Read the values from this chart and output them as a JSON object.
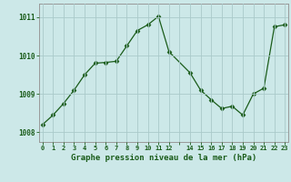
{
  "x": [
    0,
    1,
    2,
    3,
    4,
    5,
    6,
    7,
    8,
    9,
    10,
    11,
    12,
    14,
    15,
    16,
    17,
    18,
    19,
    20,
    21,
    22,
    23
  ],
  "y": [
    1008.2,
    1008.45,
    1008.75,
    1009.1,
    1009.5,
    1009.8,
    1009.82,
    1009.85,
    1010.25,
    1010.65,
    1010.8,
    1011.02,
    1010.1,
    1009.55,
    1009.1,
    1008.85,
    1008.62,
    1008.68,
    1008.45,
    1009.0,
    1009.15,
    1010.75,
    1010.8
  ],
  "line_color": "#1a5c1a",
  "marker": "D",
  "marker_size": 2.5,
  "bg_color": "#cce8e8",
  "grid_color": "#aacaca",
  "xlabel": "Graphe pression niveau de la mer (hPa)",
  "xlabel_color": "#1a5c1a",
  "tick_color": "#1a5c1a",
  "axis_color": "#999999",
  "ylim": [
    1007.75,
    1011.35
  ],
  "yticks": [
    1008,
    1009,
    1010,
    1011
  ],
  "xtick_labels": [
    "0",
    "1",
    "2",
    "3",
    "4",
    "5",
    "6",
    "7",
    "8",
    "9",
    "10",
    "11",
    "12",
    "",
    "14",
    "15",
    "16",
    "17",
    "18",
    "19",
    "20",
    "21",
    "22",
    "23"
  ],
  "xlim": [
    -0.3,
    23.3
  ]
}
